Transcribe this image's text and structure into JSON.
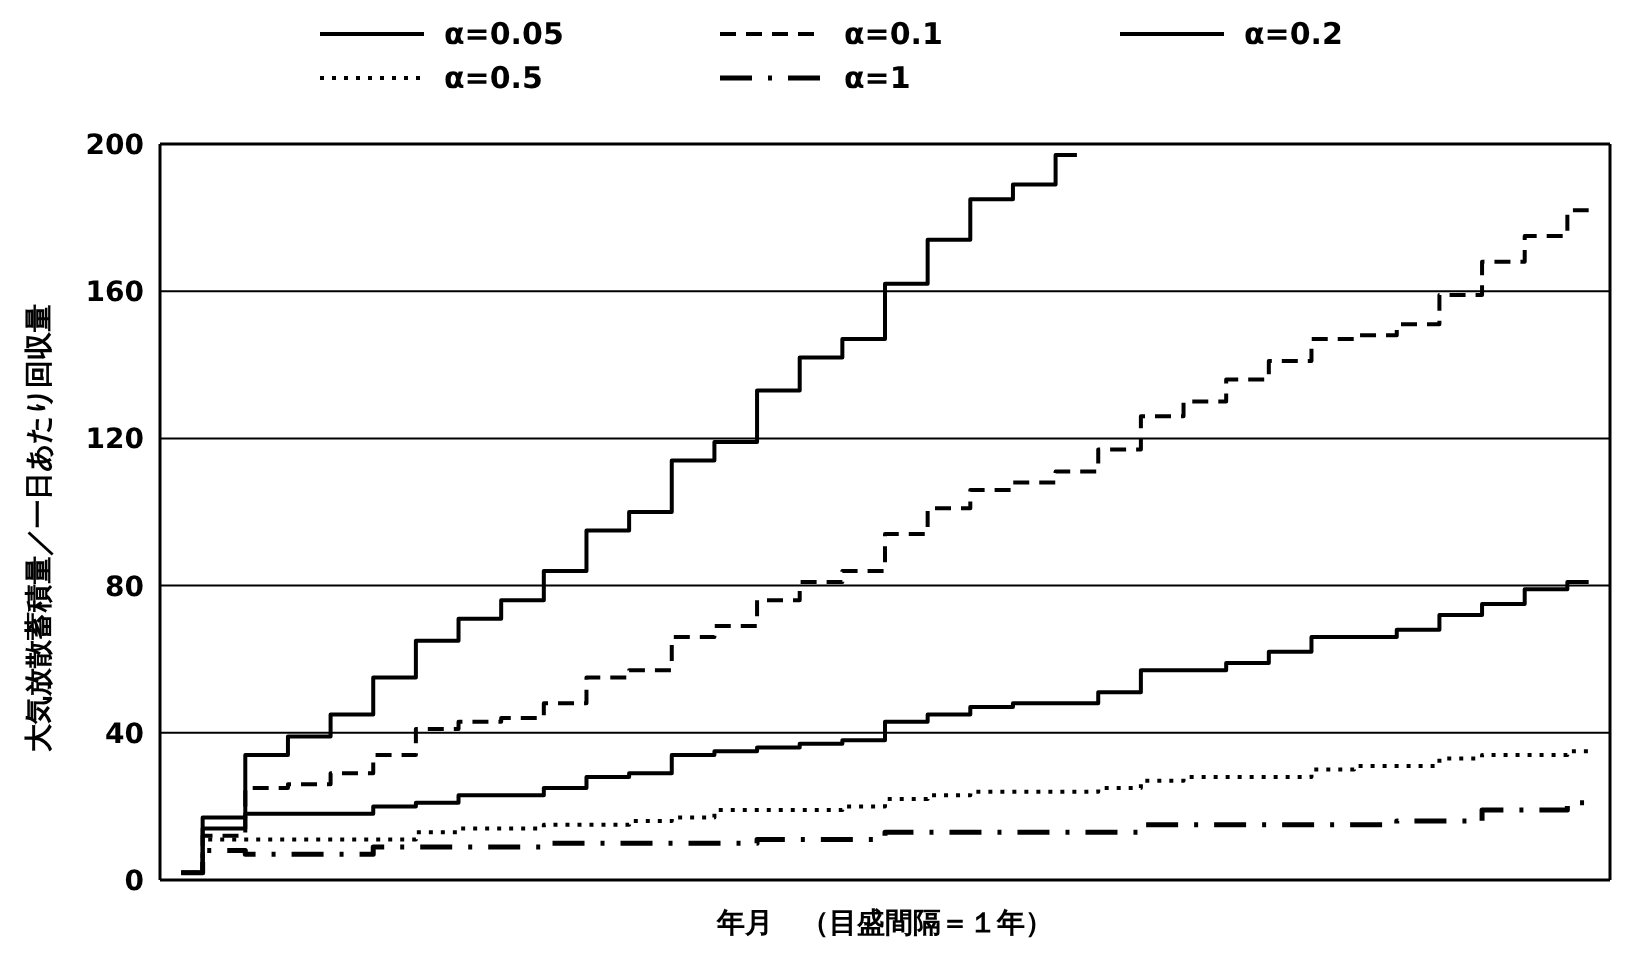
{
  "chart_data": {
    "type": "step",
    "xlabel": "年月　（目盛間隔＝１年）",
    "ylabel": "大気放散蓄積量／一日あたり回収量",
    "categories": [
      null,
      null,
      null,
      null,
      null,
      null,
      null,
      null,
      null,
      null,
      null,
      null,
      null,
      null,
      null,
      null,
      null,
      null,
      null,
      null,
      null,
      null,
      null,
      null,
      null,
      null,
      null,
      null,
      null,
      null,
      null,
      null,
      null,
      null
    ],
    "series": [
      {
        "name": "α=0.05",
        "color": "#000000",
        "line_style": "solid",
        "values": [
          2,
          17,
          34,
          39,
          45,
          55,
          65,
          71,
          76,
          84,
          95,
          100,
          114,
          119,
          133,
          142,
          147,
          162,
          174,
          185,
          189,
          197,
          null,
          null,
          null,
          null,
          null,
          null,
          null,
          null,
          null,
          null,
          null,
          null
        ]
      },
      {
        "name": "α=0.1",
        "color": "#000000",
        "line_style": "dashed",
        "values": [
          2,
          12,
          25,
          26,
          29,
          34,
          41,
          43,
          44,
          48,
          55,
          57,
          66,
          69,
          76,
          81,
          84,
          94,
          101,
          106,
          108,
          111,
          117,
          126,
          130,
          136,
          141,
          147,
          148,
          151,
          159,
          168,
          175,
          182
        ]
      },
      {
        "name": "α=0.2",
        "color": "#000000",
        "line_style": "solid",
        "values": [
          2,
          14,
          18,
          18,
          18,
          20,
          21,
          23,
          23,
          25,
          28,
          29,
          34,
          35,
          36,
          37,
          38,
          43,
          45,
          47,
          48,
          48,
          51,
          57,
          57,
          59,
          62,
          66,
          66,
          68,
          72,
          75,
          79,
          81
        ]
      },
      {
        "name": "α=0.5",
        "color": "#000000",
        "line_style": "dotted",
        "values": [
          2,
          11,
          11,
          11,
          11,
          11,
          13,
          14,
          14,
          15,
          15,
          16,
          17,
          19,
          19,
          19,
          20,
          22,
          23,
          24,
          24,
          24,
          25,
          27,
          28,
          28,
          28,
          30,
          31,
          31,
          33,
          34,
          34,
          35
        ]
      },
      {
        "name": "α=1",
        "color": "#000000",
        "line_style": "dashdot",
        "values": [
          2,
          8,
          7,
          7,
          7,
          9,
          9,
          9,
          9,
          10,
          10,
          10,
          10,
          10,
          11,
          11,
          11,
          13,
          13,
          13,
          13,
          13,
          13,
          15,
          15,
          15,
          15,
          15,
          15,
          16,
          16,
          19,
          19,
          21
        ]
      }
    ],
    "ylim": [
      0,
      200
    ],
    "yticks": [
      0,
      40,
      80,
      120,
      160,
      200
    ],
    "grid": true,
    "legend": "top"
  }
}
